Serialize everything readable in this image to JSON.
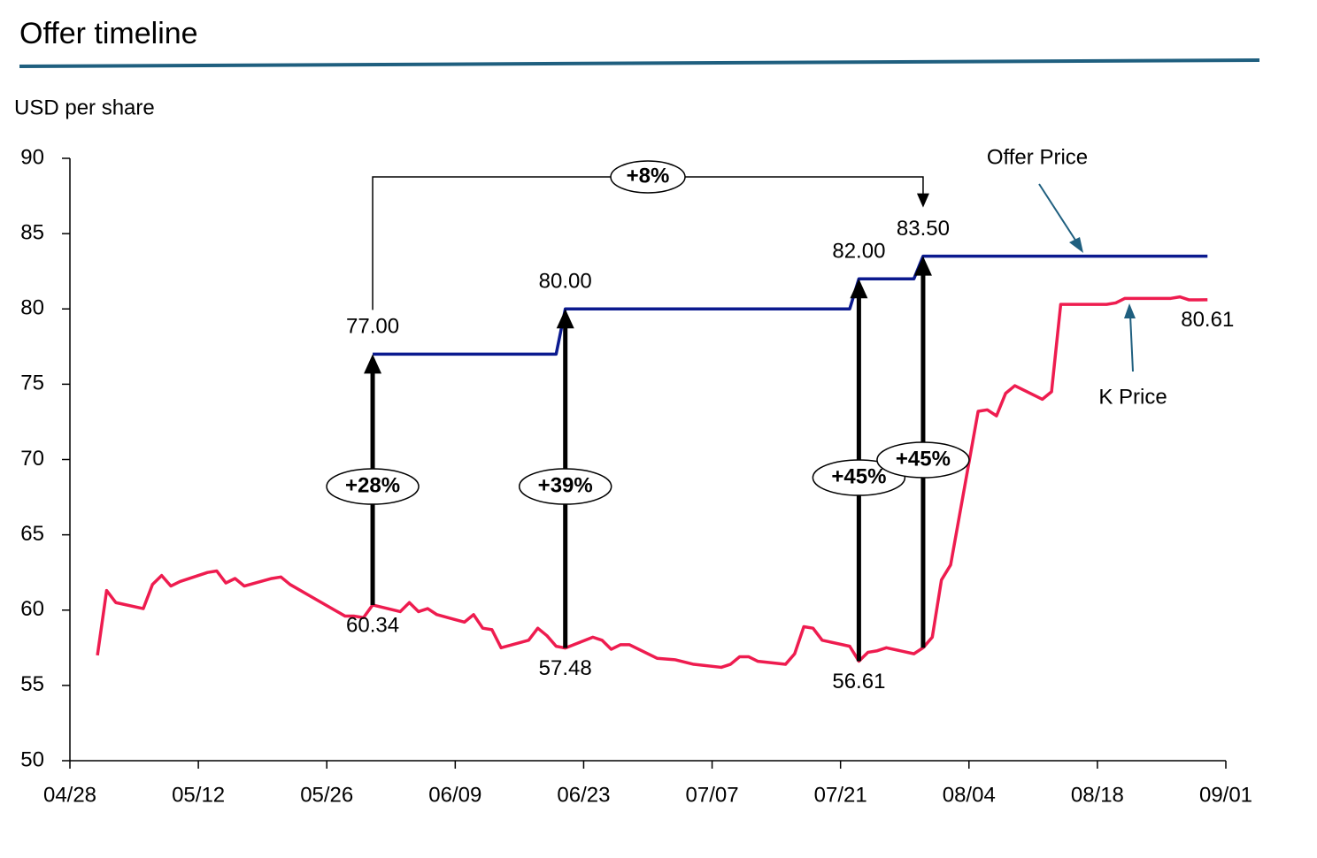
{
  "chart_data": {
    "type": "line",
    "title": "Offer timeline",
    "y_label": "USD per share",
    "xlim": [
      "04/28",
      "09/01"
    ],
    "xticks": [
      "04/28",
      "05/12",
      "05/26",
      "06/09",
      "06/23",
      "07/07",
      "07/21",
      "08/04",
      "08/18",
      "09/01"
    ],
    "ylim": [
      50,
      90
    ],
    "yticks": [
      50,
      55,
      60,
      65,
      70,
      75,
      80,
      85,
      90
    ],
    "series": [
      {
        "name": "Offer Price",
        "color": "#0b1a8f",
        "x": [
          "05/31",
          "06/20",
          "06/21",
          "07/22",
          "07/23",
          "07/29",
          "07/30",
          "08/30"
        ],
        "values": [
          77,
          77,
          80,
          80,
          82,
          82,
          83.5,
          83.5
        ],
        "value_labels": [
          "77.00",
          null,
          "80.00",
          null,
          "82.00",
          null,
          "83.50",
          null
        ]
      },
      {
        "name": "K Price",
        "color": "#ee1c4f",
        "x": [
          "05/01",
          "05/02",
          "05/03",
          "05/06",
          "05/07",
          "05/08",
          "05/09",
          "05/10",
          "05/13",
          "05/14",
          "05/15",
          "05/16",
          "05/17",
          "05/20",
          "05/21",
          "05/22",
          "05/24",
          "05/28",
          "05/29",
          "05/30",
          "05/31",
          "06/03",
          "06/04",
          "06/05",
          "06/06",
          "06/07",
          "06/10",
          "06/11",
          "06/12",
          "06/13",
          "06/14",
          "06/17",
          "06/18",
          "06/19",
          "06/20",
          "06/21",
          "06/24",
          "06/25",
          "06/26",
          "06/27",
          "06/28",
          "07/01",
          "07/03",
          "07/05",
          "07/08",
          "07/09",
          "07/10",
          "07/11",
          "07/12",
          "07/15",
          "07/16",
          "07/17",
          "07/18",
          "07/19",
          "07/22",
          "07/23",
          "07/24",
          "07/25",
          "07/26",
          "07/29",
          "07/30",
          "07/31",
          "08/01",
          "08/02",
          "08/05",
          "08/06",
          "08/07",
          "08/08",
          "08/09",
          "08/12",
          "08/13",
          "08/14",
          "08/16",
          "08/19",
          "08/20",
          "08/21",
          "08/23",
          "08/26",
          "08/27",
          "08/28",
          "08/29",
          "08/30"
        ],
        "values": [
          57.0,
          61.3,
          60.5,
          60.1,
          61.7,
          62.3,
          61.6,
          61.9,
          62.5,
          62.6,
          61.8,
          62.1,
          61.6,
          62.1,
          62.2,
          61.7,
          61.0,
          59.6,
          59.6,
          59.5,
          60.34,
          59.9,
          60.5,
          59.9,
          60.1,
          59.7,
          59.2,
          59.7,
          58.8,
          58.7,
          57.5,
          58.0,
          58.8,
          58.3,
          57.6,
          57.48,
          58.2,
          58.0,
          57.4,
          57.7,
          57.7,
          56.8,
          56.7,
          56.4,
          56.2,
          56.4,
          56.9,
          56.9,
          56.6,
          56.4,
          57.1,
          58.9,
          58.8,
          58.0,
          57.6,
          56.61,
          57.2,
          57.3,
          57.5,
          57.1,
          57.5,
          58.2,
          62.0,
          63.0,
          73.2,
          73.3,
          72.9,
          74.4,
          74.9,
          74.0,
          74.5,
          80.3,
          80.3,
          80.3,
          80.4,
          80.7,
          80.7,
          80.7,
          80.8,
          80.6,
          80.6,
          80.61
        ],
        "value_labels": [
          null,
          null,
          null,
          null,
          null,
          null,
          null,
          null,
          null,
          null,
          null,
          null,
          null,
          null,
          null,
          null,
          null,
          null,
          null,
          null,
          "60.34",
          null,
          null,
          null,
          null,
          null,
          null,
          null,
          null,
          null,
          null,
          null,
          null,
          null,
          null,
          "57.48",
          null,
          null,
          null,
          null,
          null,
          null,
          null,
          null,
          null,
          null,
          null,
          null,
          null,
          null,
          null,
          null,
          null,
          null,
          null,
          "56.61",
          null,
          null,
          null,
          null,
          null,
          null,
          null,
          null,
          null,
          null,
          null,
          null,
          null,
          null,
          null,
          null,
          null,
          null,
          null,
          null,
          null,
          null,
          null,
          null,
          null,
          "80.61"
        ]
      }
    ],
    "annotations": [
      {
        "x": "05/31",
        "label": "+28%"
      },
      {
        "x": "06/21",
        "label": "+39%"
      },
      {
        "x": "07/23",
        "label": "+45%"
      },
      {
        "x": "07/30",
        "label": "+45%"
      }
    ],
    "bracket": {
      "from": "05/31",
      "to": "07/30",
      "label": "+8%"
    }
  }
}
